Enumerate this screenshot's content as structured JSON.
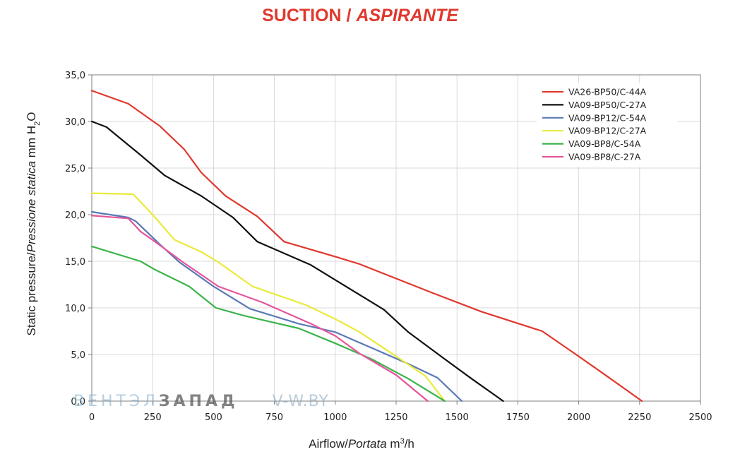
{
  "title": {
    "part1": "SUCTION",
    "separator": " / ",
    "part2": "ASPIRANTE"
  },
  "watermark": {
    "part1": "ВЕНТЭЛ",
    "part2": "ЗАПАД",
    "part3": "V-W.BY"
  },
  "chart_data": {
    "type": "line",
    "title": "SUCTION / ASPIRANTE",
    "xlabel": "Airflow/Portata m³/h",
    "ylabel": "Static pressure/Pressione statica mm H2O",
    "xlim": [
      0,
      2500
    ],
    "ylim": [
      0,
      35
    ],
    "x_ticks": [
      0,
      250,
      500,
      750,
      1000,
      1250,
      1500,
      1750,
      2000,
      2250,
      2500
    ],
    "y_ticks": [
      0,
      5,
      10,
      15,
      20,
      25,
      30,
      35
    ],
    "x_tick_labels": [
      "0",
      "250",
      "500",
      "750",
      "1000",
      "1250",
      "1500",
      "1750",
      "2000",
      "2250",
      "2500"
    ],
    "y_tick_labels": [
      "0,0",
      "5,0",
      "10,0",
      "15,0",
      "20,0",
      "25,0",
      "30,0",
      "35,0"
    ],
    "grid": true,
    "legend_position": "top-right",
    "series": [
      {
        "name": "VA26-BP50/C-44A",
        "color": "#e0382d",
        "points": [
          [
            0,
            33.3
          ],
          [
            150,
            31.9
          ],
          [
            280,
            29.5
          ],
          [
            380,
            27
          ],
          [
            450,
            24.5
          ],
          [
            550,
            22
          ],
          [
            680,
            19.8
          ],
          [
            790,
            17.1
          ],
          [
            1000,
            15.5
          ],
          [
            1100,
            14.7
          ],
          [
            1400,
            11.6
          ],
          [
            1600,
            9.6
          ],
          [
            1850,
            7.5
          ],
          [
            2000,
            4.8
          ],
          [
            2120,
            2.6
          ],
          [
            2260,
            0
          ]
        ]
      },
      {
        "name": "VA09-BP50/C-27A",
        "color": "#111111",
        "points": [
          [
            0,
            30
          ],
          [
            60,
            29.4
          ],
          [
            200,
            26.4
          ],
          [
            300,
            24.2
          ],
          [
            450,
            22
          ],
          [
            580,
            19.7
          ],
          [
            680,
            17.1
          ],
          [
            900,
            14.6
          ],
          [
            1000,
            13
          ],
          [
            1200,
            9.8
          ],
          [
            1300,
            7.4
          ],
          [
            1450,
            4.5
          ],
          [
            1560,
            2.4
          ],
          [
            1690,
            0
          ]
        ]
      },
      {
        "name": "VA09-BP12/C-54A",
        "color": "#5a79b6",
        "points": [
          [
            0,
            20.3
          ],
          [
            150,
            19.7
          ],
          [
            180,
            19.3
          ],
          [
            280,
            16.8
          ],
          [
            360,
            14.9
          ],
          [
            500,
            12.3
          ],
          [
            650,
            9.9
          ],
          [
            850,
            8.3
          ],
          [
            1000,
            7.4
          ],
          [
            1150,
            5.7
          ],
          [
            1300,
            4
          ],
          [
            1420,
            2.5
          ],
          [
            1520,
            0
          ]
        ]
      },
      {
        "name": "VA09-BP12/C-27A",
        "color": "#eaea3a",
        "points": [
          [
            0,
            22.3
          ],
          [
            170,
            22.2
          ],
          [
            250,
            20
          ],
          [
            340,
            17.3
          ],
          [
            450,
            16
          ],
          [
            520,
            14.9
          ],
          [
            660,
            12.3
          ],
          [
            880,
            10.3
          ],
          [
            1000,
            8.8
          ],
          [
            1100,
            7.4
          ],
          [
            1250,
            4.8
          ],
          [
            1370,
            2.7
          ],
          [
            1450,
            0
          ]
        ]
      },
      {
        "name": "VA09-BP8/C-54A",
        "color": "#3cb44a",
        "points": [
          [
            0,
            16.6
          ],
          [
            200,
            15
          ],
          [
            260,
            14.1
          ],
          [
            400,
            12.3
          ],
          [
            510,
            10
          ],
          [
            620,
            9.2
          ],
          [
            850,
            7.8
          ],
          [
            1000,
            6.2
          ],
          [
            1150,
            4.5
          ],
          [
            1300,
            2.4
          ],
          [
            1450,
            0
          ]
        ]
      },
      {
        "name": "VA09-BP8/C-27A",
        "color": "#e5559b",
        "points": [
          [
            0,
            19.9
          ],
          [
            150,
            19.6
          ],
          [
            200,
            18.2
          ],
          [
            260,
            17.1
          ],
          [
            380,
            14.8
          ],
          [
            520,
            12.3
          ],
          [
            700,
            10.6
          ],
          [
            900,
            8.3
          ],
          [
            1000,
            7
          ],
          [
            1100,
            5.1
          ],
          [
            1250,
            2.8
          ],
          [
            1380,
            0
          ]
        ]
      }
    ]
  }
}
